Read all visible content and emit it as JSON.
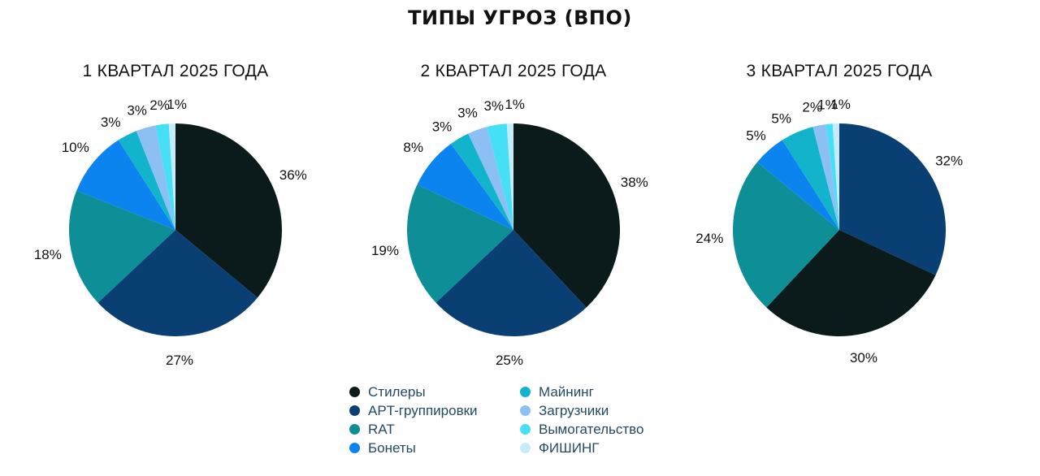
{
  "title": "ТИПЫ УГРОЗ (ВПО)",
  "legend": [
    {
      "label": "Стилеры",
      "color": "#0b1a1a"
    },
    {
      "label": "Майнинг",
      "color": "#12b4cc"
    },
    {
      "label": "APT-группировки",
      "color": "#0a3f73"
    },
    {
      "label": "Загрузчики",
      "color": "#8cc0f5"
    },
    {
      "label": "RAT",
      "color": "#0e8e96"
    },
    {
      "label": "Вымогательство",
      "color": "#45e0f5"
    },
    {
      "label": "Бонеты",
      "color": "#0b84f0"
    },
    {
      "label": "ФИШИНГ",
      "color": "#c6ecfb"
    }
  ],
  "chart_data": [
    {
      "type": "pie",
      "title": "1 КВАРТАЛ 2025 ГОДА",
      "categories": [
        "Стилеры",
        "APT-группировки",
        "RAT",
        "Бонеты",
        "Майнинг",
        "Загрузчики",
        "Вымогательство",
        "ФИШИНГ"
      ],
      "values": [
        36,
        27,
        18,
        10,
        3,
        3,
        2,
        1
      ],
      "labels": [
        "36%",
        "27%",
        "18%",
        "10%",
        "3%",
        "3%",
        "2%",
        "1%"
      ],
      "colors": [
        "#0b1a1a",
        "#0a3f73",
        "#0e8e96",
        "#0b84f0",
        "#12b4cc",
        "#8cc0f5",
        "#45e0f5",
        "#c6ecfb"
      ]
    },
    {
      "type": "pie",
      "title": "2 КВАРТАЛ 2025 ГОДА",
      "categories": [
        "Стилеры",
        "APT-группировки",
        "RAT",
        "Бонеты",
        "Майнинг",
        "Загрузчики",
        "Вымогательство",
        "ФИШИНГ"
      ],
      "values": [
        38,
        25,
        19,
        8,
        3,
        3,
        3,
        1
      ],
      "labels": [
        "38%",
        "25%",
        "19%",
        "8%",
        "3%",
        "3%",
        "3%",
        "1%"
      ],
      "colors": [
        "#0b1a1a",
        "#0a3f73",
        "#0e8e96",
        "#0b84f0",
        "#12b4cc",
        "#8cc0f5",
        "#45e0f5",
        "#c6ecfb"
      ]
    },
    {
      "type": "pie",
      "title": "3 КВАРТАЛ 2025 ГОДА",
      "categories": [
        "APT-группировки",
        "Стилеры",
        "RAT",
        "Бонеты",
        "Майнинг",
        "Загрузчики",
        "Вымогательство",
        "ФИШИНГ"
      ],
      "values": [
        32,
        30,
        24,
        5,
        5,
        2,
        1,
        1
      ],
      "labels": [
        "32%",
        "30%",
        "24%",
        "5%",
        "5%",
        "2%",
        "1%",
        "1%"
      ],
      "colors": [
        "#0a3f73",
        "#0b1a1a",
        "#0e8e96",
        "#0b84f0",
        "#12b4cc",
        "#8cc0f5",
        "#45e0f5",
        "#c6ecfb"
      ]
    }
  ]
}
